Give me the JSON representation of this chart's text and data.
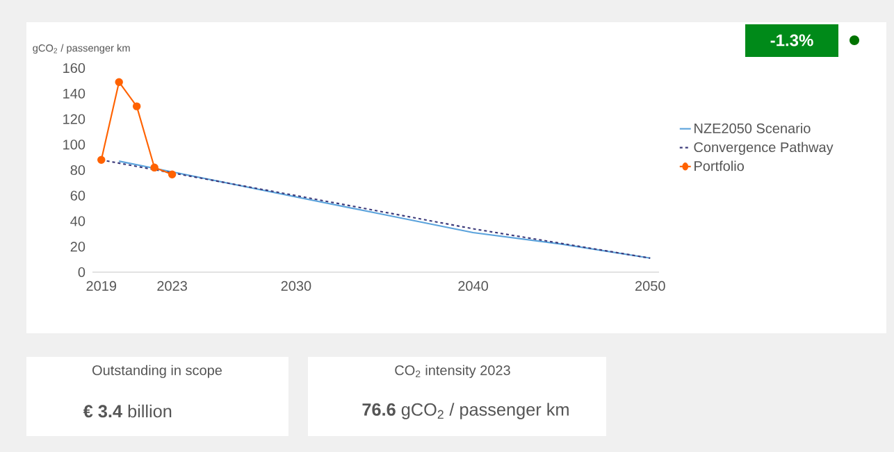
{
  "chart_data": {
    "type": "line",
    "ylabel": "gCO$_{2}$ / passenger km",
    "series": [
      {
        "name": "NZE2050 Scenario",
        "color": "#5ba3dc",
        "x": [
          2020,
          2025,
          2030,
          2035,
          2040,
          2045,
          2050
        ],
        "values": [
          87,
          73,
          59,
          45,
          31,
          22,
          11
        ],
        "line_style": "solid",
        "marker": "none"
      },
      {
        "name": "Convergence Pathway",
        "color": "#3c3a7a",
        "x": [
          2019,
          2030,
          2040,
          2050
        ],
        "values": [
          88,
          60,
          34,
          11
        ],
        "line_style": "dashed",
        "marker": "none"
      },
      {
        "name": "Portfolio",
        "color": "#ff6200",
        "x": [
          2019,
          2020,
          2021,
          2022,
          2023
        ],
        "values": [
          88,
          149,
          130,
          82,
          76.6
        ],
        "line_style": "solid",
        "marker": "circle"
      }
    ],
    "xlim": [
      2018.5,
      2050.5
    ],
    "xticks": [
      2019,
      2023,
      2030,
      2040,
      2050
    ],
    "ylim": [
      0,
      160
    ],
    "yticks": [
      0,
      20,
      40,
      60,
      80,
      100,
      120,
      140,
      160
    ],
    "grid": false,
    "legend": "right",
    "annotations": [
      "-1.3%",
      "Outstanding in scope",
      "**€    3.4** billion",
      "CO$_{2}$ intensity 2023",
      "**76.6**  gCO$_{2}$ / passenger km"
    ]
  }
}
